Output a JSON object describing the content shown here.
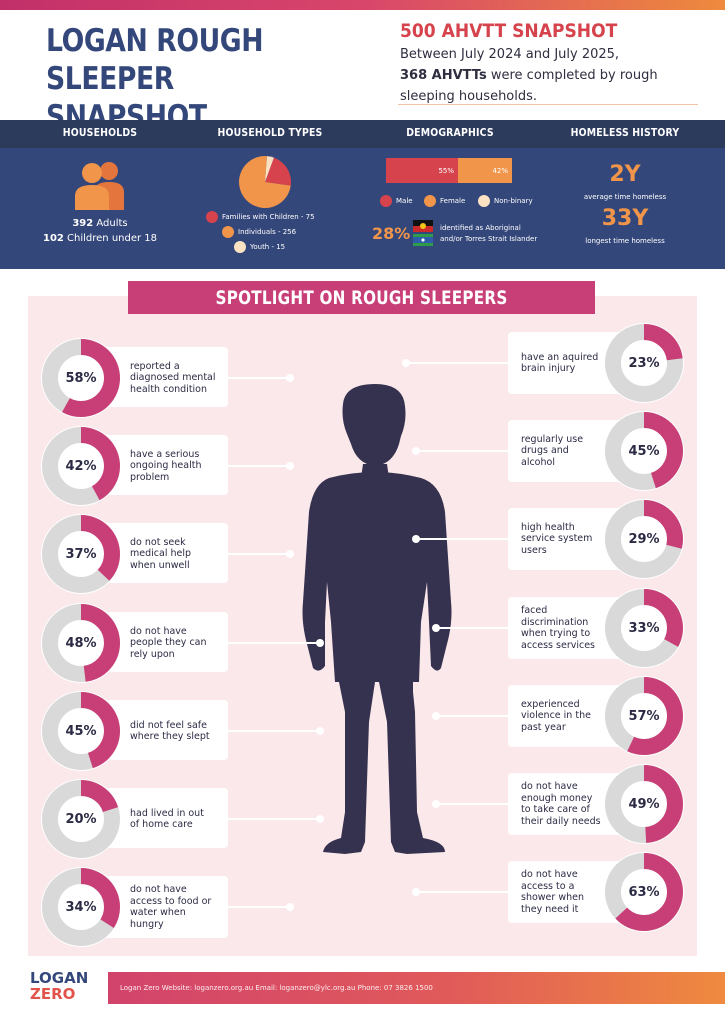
{
  "header": {
    "title_line1": "LOGAN ROUGH SLEEPER",
    "title_line2": "SNAPSHOT",
    "snapshot_title": "500 AHVTT SNAPSHOT",
    "snapshot_line1": "Between July 2024 and July 2025,",
    "snapshot_bold": "368 AHVTTs",
    "snapshot_line2": " were completed by rough",
    "snapshot_line3": "sleeping households."
  },
  "stats": {
    "headings": [
      "HOUSEHOLDS",
      "HOUSEHOLD TYPES",
      "DEMOGRAPHICS",
      "HOMELESS HISTORY"
    ],
    "households": {
      "adults_num": "392",
      "adults_label": " Adults",
      "children_num": "102",
      "children_label": " Children under 18"
    },
    "household_types": {
      "items": [
        {
          "label": "Families with Children - 75",
          "value": 75,
          "color": "#d6434d"
        },
        {
          "label": "Individuals - 256",
          "value": 256,
          "color": "#f0954a"
        },
        {
          "label": "Youth - 15",
          "value": 15,
          "color": "#fbe2c3"
        }
      ]
    },
    "demographics": {
      "male_pct": "55%",
      "female_pct": "42%",
      "male_value": 55,
      "female_value": 42,
      "legend": [
        "Male",
        "Female",
        "Non-binary"
      ],
      "colors": [
        "#d6434d",
        "#f0954a",
        "#fbe2c3"
      ],
      "aboriginal_pct": "28%",
      "aboriginal_text1": "identified as Aboriginal",
      "aboriginal_text2": "and/or Torres Strait Islander"
    },
    "history": {
      "avg_value": "2Y",
      "avg_label": "average time homeless",
      "longest_value": "33Y",
      "longest_label": "longest time homeless"
    }
  },
  "spotlight": {
    "title": "SPOTLIGHT ON ROUGH SLEEPERS",
    "left": [
      {
        "pct": 58,
        "label": "58%",
        "text": [
          "reported a",
          "diagnosed mental",
          "health condition"
        ]
      },
      {
        "pct": 42,
        "label": "42%",
        "text": [
          "have a serious",
          "ongoing health",
          "problem"
        ]
      },
      {
        "pct": 37,
        "label": "37%",
        "text": [
          "do not seek",
          "medical help",
          "when unwell"
        ]
      },
      {
        "pct": 48,
        "label": "48%",
        "text": [
          "do not have",
          "people they can",
          "rely upon"
        ]
      },
      {
        "pct": 45,
        "label": "45%",
        "text": [
          "did not feel safe",
          "where they slept"
        ]
      },
      {
        "pct": 20,
        "label": "20%",
        "text": [
          "had lived in out",
          "of home care"
        ]
      },
      {
        "pct": 34,
        "label": "34%",
        "text": [
          "do not have",
          "access to food or",
          "water when",
          "hungry"
        ]
      }
    ],
    "right": [
      {
        "pct": 23,
        "label": "23%",
        "text": [
          "have an aquired",
          "brain injury"
        ]
      },
      {
        "pct": 45,
        "label": "45%",
        "text": [
          "regularly use",
          "drugs and",
          "alcohol"
        ]
      },
      {
        "pct": 29,
        "label": "29%",
        "text": [
          "high health",
          "service system",
          "users"
        ]
      },
      {
        "pct": 33,
        "label": "33%",
        "text": [
          "faced",
          "discrimination",
          "when trying to",
          "access services"
        ]
      },
      {
        "pct": 57,
        "label": "57%",
        "text": [
          "experienced",
          "violence in the",
          "past year"
        ]
      },
      {
        "pct": 49,
        "label": "49%",
        "text": [
          "do not have",
          "enough money",
          "to take care of",
          "their daily needs"
        ]
      },
      {
        "pct": 63,
        "label": "63%",
        "text": [
          "do not have",
          "access to a",
          "shower when",
          "they need it"
        ]
      }
    ],
    "colors": {
      "fill": "#c83f77",
      "track": "#d9d9d9"
    }
  },
  "footer": {
    "logo_line1": "LOGAN",
    "logo_line2": "ZERO",
    "info": "Logan Zero     Website: loganzero.org.au     Email: loganzero@ylc.org.au     Phone: 07 3826 1500"
  }
}
